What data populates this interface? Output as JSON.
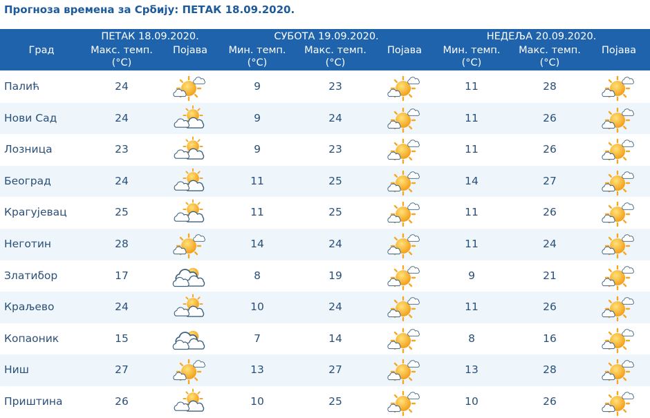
{
  "title": "Прогноза времена за Србију: ПЕТАК  18.09.2020.",
  "table": {
    "header": {
      "city": "Град",
      "days": [
        {
          "label": "ПЕТАК  18.09.2020.",
          "columns": [
            "Макс. темп. (°C)",
            "Појава"
          ]
        },
        {
          "label": "СУБОТА  19.09.2020.",
          "columns": [
            "Мин. темп. (°C)",
            "Макс. темп. (°C)",
            "Појава"
          ]
        },
        {
          "label": "НЕДЕЉА  20.09.2020.",
          "columns": [
            "Мин. темп. (°C)",
            "Макс. темп. (°C)",
            "Појава"
          ]
        }
      ]
    },
    "rows": [
      [
        "Палић",
        24,
        9,
        23,
        11,
        28
      ],
      [
        "Нови Сад",
        24,
        9,
        24,
        11,
        26
      ],
      [
        "Лозница",
        23,
        9,
        23,
        11,
        26
      ],
      [
        "Београд",
        24,
        11,
        25,
        14,
        27
      ],
      [
        "Крагујевац",
        25,
        11,
        25,
        11,
        26
      ],
      [
        "Неготин",
        28,
        14,
        24,
        11,
        24
      ],
      [
        "Златибор",
        17,
        8,
        19,
        9,
        21
      ],
      [
        "Краљево",
        24,
        10,
        24,
        11,
        26
      ],
      [
        "Копаоник",
        15,
        7,
        14,
        8,
        16
      ],
      [
        "Ниш",
        27,
        13,
        27,
        13,
        28
      ],
      [
        "Приштина",
        26,
        10,
        25,
        10,
        26
      ]
    ]
  }
}
